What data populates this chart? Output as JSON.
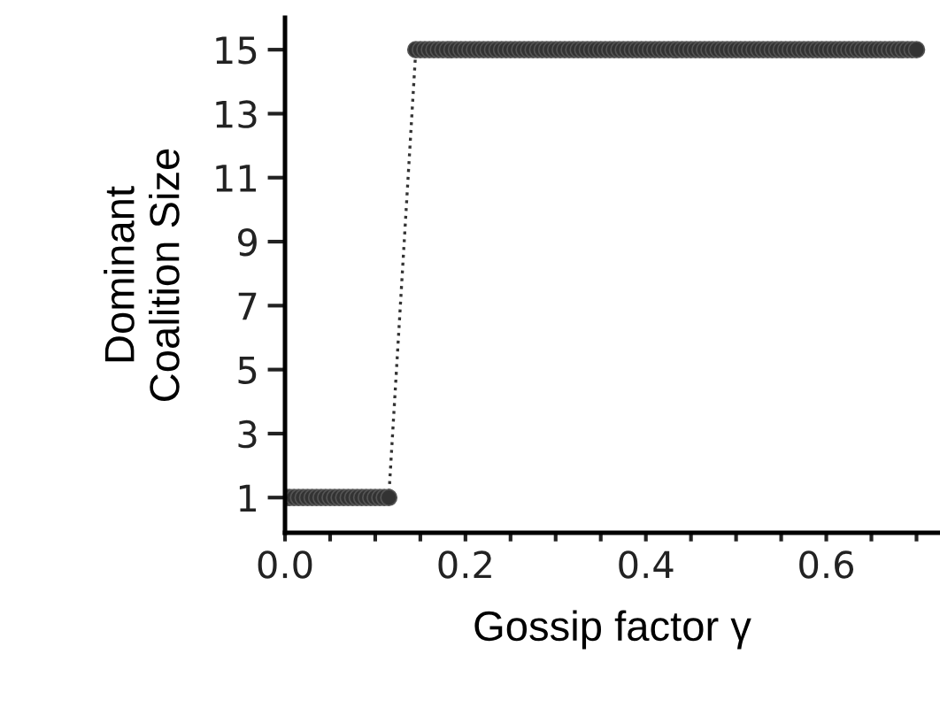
{
  "chart_data": {
    "type": "line",
    "xlabel": "Gossip factor γ",
    "ylabel": "Dominant\nCoalition Size",
    "series": [
      {
        "color": "#333333",
        "x": [
          0,
          0.005,
          0.01,
          0.015,
          0.02,
          0.025,
          0.03,
          0.035,
          0.04,
          0.045,
          0.05,
          0.055,
          0.06,
          0.065,
          0.07,
          0.075,
          0.08,
          0.085,
          0.09,
          0.095,
          0.1,
          0.105,
          0.11,
          0.115,
          0.145,
          0.15,
          0.155,
          0.16,
          0.165,
          0.17,
          0.175,
          0.18,
          0.185,
          0.19,
          0.195,
          0.2,
          0.205,
          0.21,
          0.215,
          0.22,
          0.225,
          0.23,
          0.235,
          0.24,
          0.245,
          0.25,
          0.255,
          0.26,
          0.265,
          0.27,
          0.275,
          0.28,
          0.285,
          0.29,
          0.295,
          0.3,
          0.305,
          0.31,
          0.315,
          0.32,
          0.325,
          0.33,
          0.335,
          0.34,
          0.345,
          0.35,
          0.355,
          0.36,
          0.365,
          0.37,
          0.375,
          0.38,
          0.385,
          0.39,
          0.395,
          0.4,
          0.405,
          0.41,
          0.415,
          0.42,
          0.425,
          0.43,
          0.435,
          0.44,
          0.445,
          0.45,
          0.455,
          0.46,
          0.465,
          0.47,
          0.475,
          0.48,
          0.485,
          0.49,
          0.495,
          0.5,
          0.505,
          0.51,
          0.515,
          0.52,
          0.525,
          0.53,
          0.535,
          0.54,
          0.545,
          0.55,
          0.555,
          0.56,
          0.565,
          0.57,
          0.575,
          0.58,
          0.585,
          0.59,
          0.595,
          0.6,
          0.605,
          0.61,
          0.615,
          0.62,
          0.625,
          0.63,
          0.635,
          0.64,
          0.645,
          0.65,
          0.655,
          0.66,
          0.665,
          0.67,
          0.675,
          0.68,
          0.685,
          0.69,
          0.695,
          0.7
        ],
        "values": [
          1,
          1,
          1,
          1,
          1,
          1,
          1,
          1,
          1,
          1,
          1,
          1,
          1,
          1,
          1,
          1,
          1,
          1,
          1,
          1,
          1,
          1,
          1,
          1,
          15,
          15,
          15,
          15,
          15,
          15,
          15,
          15,
          15,
          15,
          15,
          15,
          15,
          15,
          15,
          15,
          15,
          15,
          15,
          15,
          15,
          15,
          15,
          15,
          15,
          15,
          15,
          15,
          15,
          15,
          15,
          15,
          15,
          15,
          15,
          15,
          15,
          15,
          15,
          15,
          15,
          15,
          15,
          15,
          15,
          15,
          15,
          15,
          15,
          15,
          15,
          15,
          15,
          15,
          15,
          15,
          15,
          15,
          15,
          15,
          15,
          15,
          15,
          15,
          15,
          15,
          15,
          15,
          15,
          15,
          15,
          15,
          15,
          15,
          15,
          15,
          15,
          15,
          15,
          15,
          15,
          15,
          15,
          15,
          15,
          15,
          15,
          15,
          15,
          15,
          15,
          15,
          15,
          15,
          15,
          15,
          15,
          15,
          15,
          15,
          15,
          15,
          15,
          15,
          15,
          15,
          15,
          15,
          15,
          15,
          15,
          15
        ]
      }
    ],
    "marker": "circle",
    "line_style": "dotted",
    "xlim": [
      0,
      0.725
    ],
    "ylim": [
      -0.1,
      16
    ],
    "xticks": [
      {
        "value": 0,
        "label": "0.0"
      },
      {
        "value": 0.05,
        "label": null
      },
      {
        "value": 0.1,
        "label": null
      },
      {
        "value": 0.15,
        "label": null
      },
      {
        "value": 0.2,
        "label": "0.2"
      },
      {
        "value": 0.25,
        "label": null
      },
      {
        "value": 0.3,
        "label": null
      },
      {
        "value": 0.35,
        "label": null
      },
      {
        "value": 0.4,
        "label": "0.4"
      },
      {
        "value": 0.45,
        "label": null
      },
      {
        "value": 0.5,
        "label": null
      },
      {
        "value": 0.55,
        "label": null
      },
      {
        "value": 0.6,
        "label": "0.6"
      },
      {
        "value": 0.65,
        "label": null
      },
      {
        "value": 0.7,
        "label": null
      }
    ],
    "yticks": [
      1,
      3,
      5,
      7,
      9,
      11,
      13,
      15
    ],
    "grid": false,
    "legend": false
  }
}
